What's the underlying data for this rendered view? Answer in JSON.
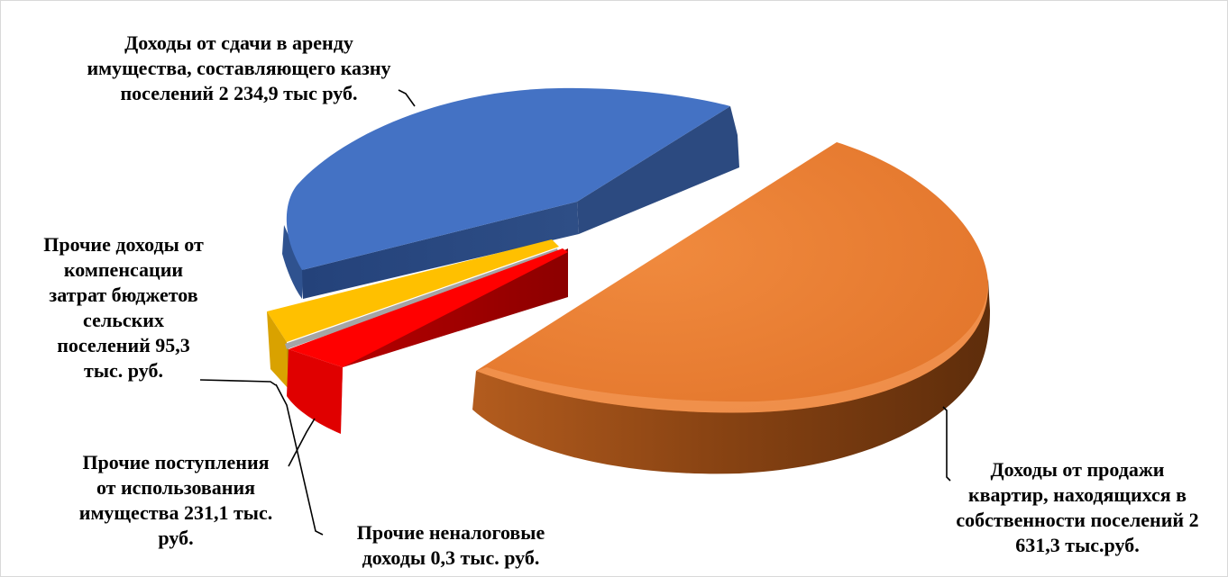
{
  "chart_data": {
    "type": "pie",
    "three_d": true,
    "exploded": true,
    "legend": "none",
    "slices": [
      {
        "key": "orange",
        "value": 2631.3,
        "color": "#ED7D31",
        "label": "Доходы от продажи квартир, находящихся в собственности поселений 2 631,3 тыс.руб."
      },
      {
        "key": "blue",
        "value": 2234.9,
        "color": "#4472C4",
        "label": "Доходы от сдачи в аренду имущества, составляющего казну поселений  2 234,9 тыс руб."
      },
      {
        "key": "yellow",
        "value": 95.3,
        "color": "#FFC000",
        "label": "Прочие доходы от компенсации затрат бюджетов сельских поселений 95,3 тыс. руб."
      },
      {
        "key": "red",
        "value": 231.1,
        "color": "#FF0000",
        "label": "Прочие поступления от использования имущества 231,1 тыс. руб."
      },
      {
        "key": "gray",
        "value": 0.3,
        "color": "#A5A5A5",
        "label": "Прочие неналоговые доходы 0,3 тыс. руб."
      }
    ]
  },
  "labels": {
    "blue": [
      "Доходы от сдачи в аренду",
      "имущества, составляющего казну",
      "поселений  2 234,9 тыс руб."
    ],
    "orange": [
      "Доходы от продажи",
      "квартир, находящихся в",
      "собственности поселений 2",
      "631,3 тыс.руб."
    ],
    "yellow": [
      "Прочие доходы от",
      "компенсации",
      "затрат бюджетов",
      "сельских",
      "поселений 95,3",
      "тыс. руб."
    ],
    "red": [
      "Прочие поступления",
      "от использования",
      "имущества 231,1 тыс.",
      "руб."
    ],
    "gray": [
      "Прочие неналоговые",
      "доходы 0,3 тыс. руб."
    ]
  }
}
